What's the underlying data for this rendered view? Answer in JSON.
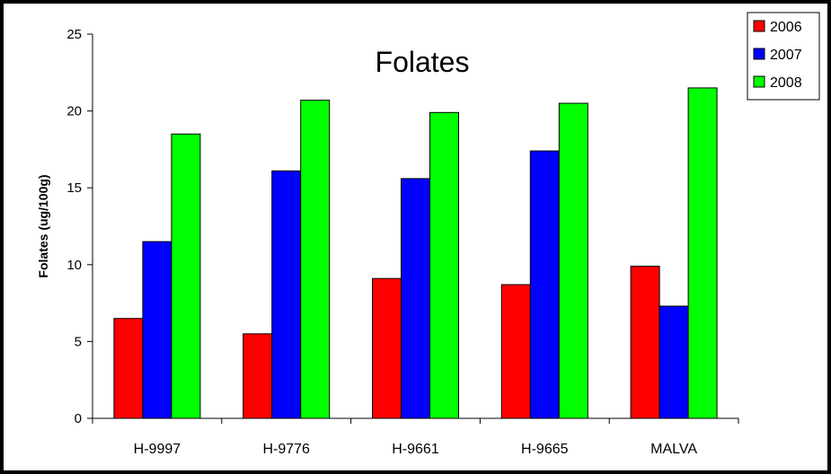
{
  "chart_data": {
    "type": "bar",
    "title": "Folates",
    "xlabel": "",
    "ylabel": "Folates (ug/100g)",
    "categories": [
      "H-9997",
      "H-9776",
      "H-9661",
      "H-9665",
      "MALVA"
    ],
    "series": [
      {
        "name": "2006",
        "color": "#ff0000",
        "values": [
          6.5,
          5.5,
          9.1,
          8.7,
          9.9
        ]
      },
      {
        "name": "2007",
        "color": "#0000ff",
        "values": [
          11.5,
          16.1,
          15.6,
          17.4,
          7.3
        ]
      },
      {
        "name": "2008",
        "color": "#00ff00",
        "values": [
          18.5,
          20.7,
          19.9,
          20.5,
          21.5
        ]
      }
    ],
    "ylim": [
      0,
      25
    ],
    "yticks": [
      0,
      5,
      10,
      15,
      20,
      25
    ],
    "grid": false,
    "legend_position": "top-right"
  }
}
